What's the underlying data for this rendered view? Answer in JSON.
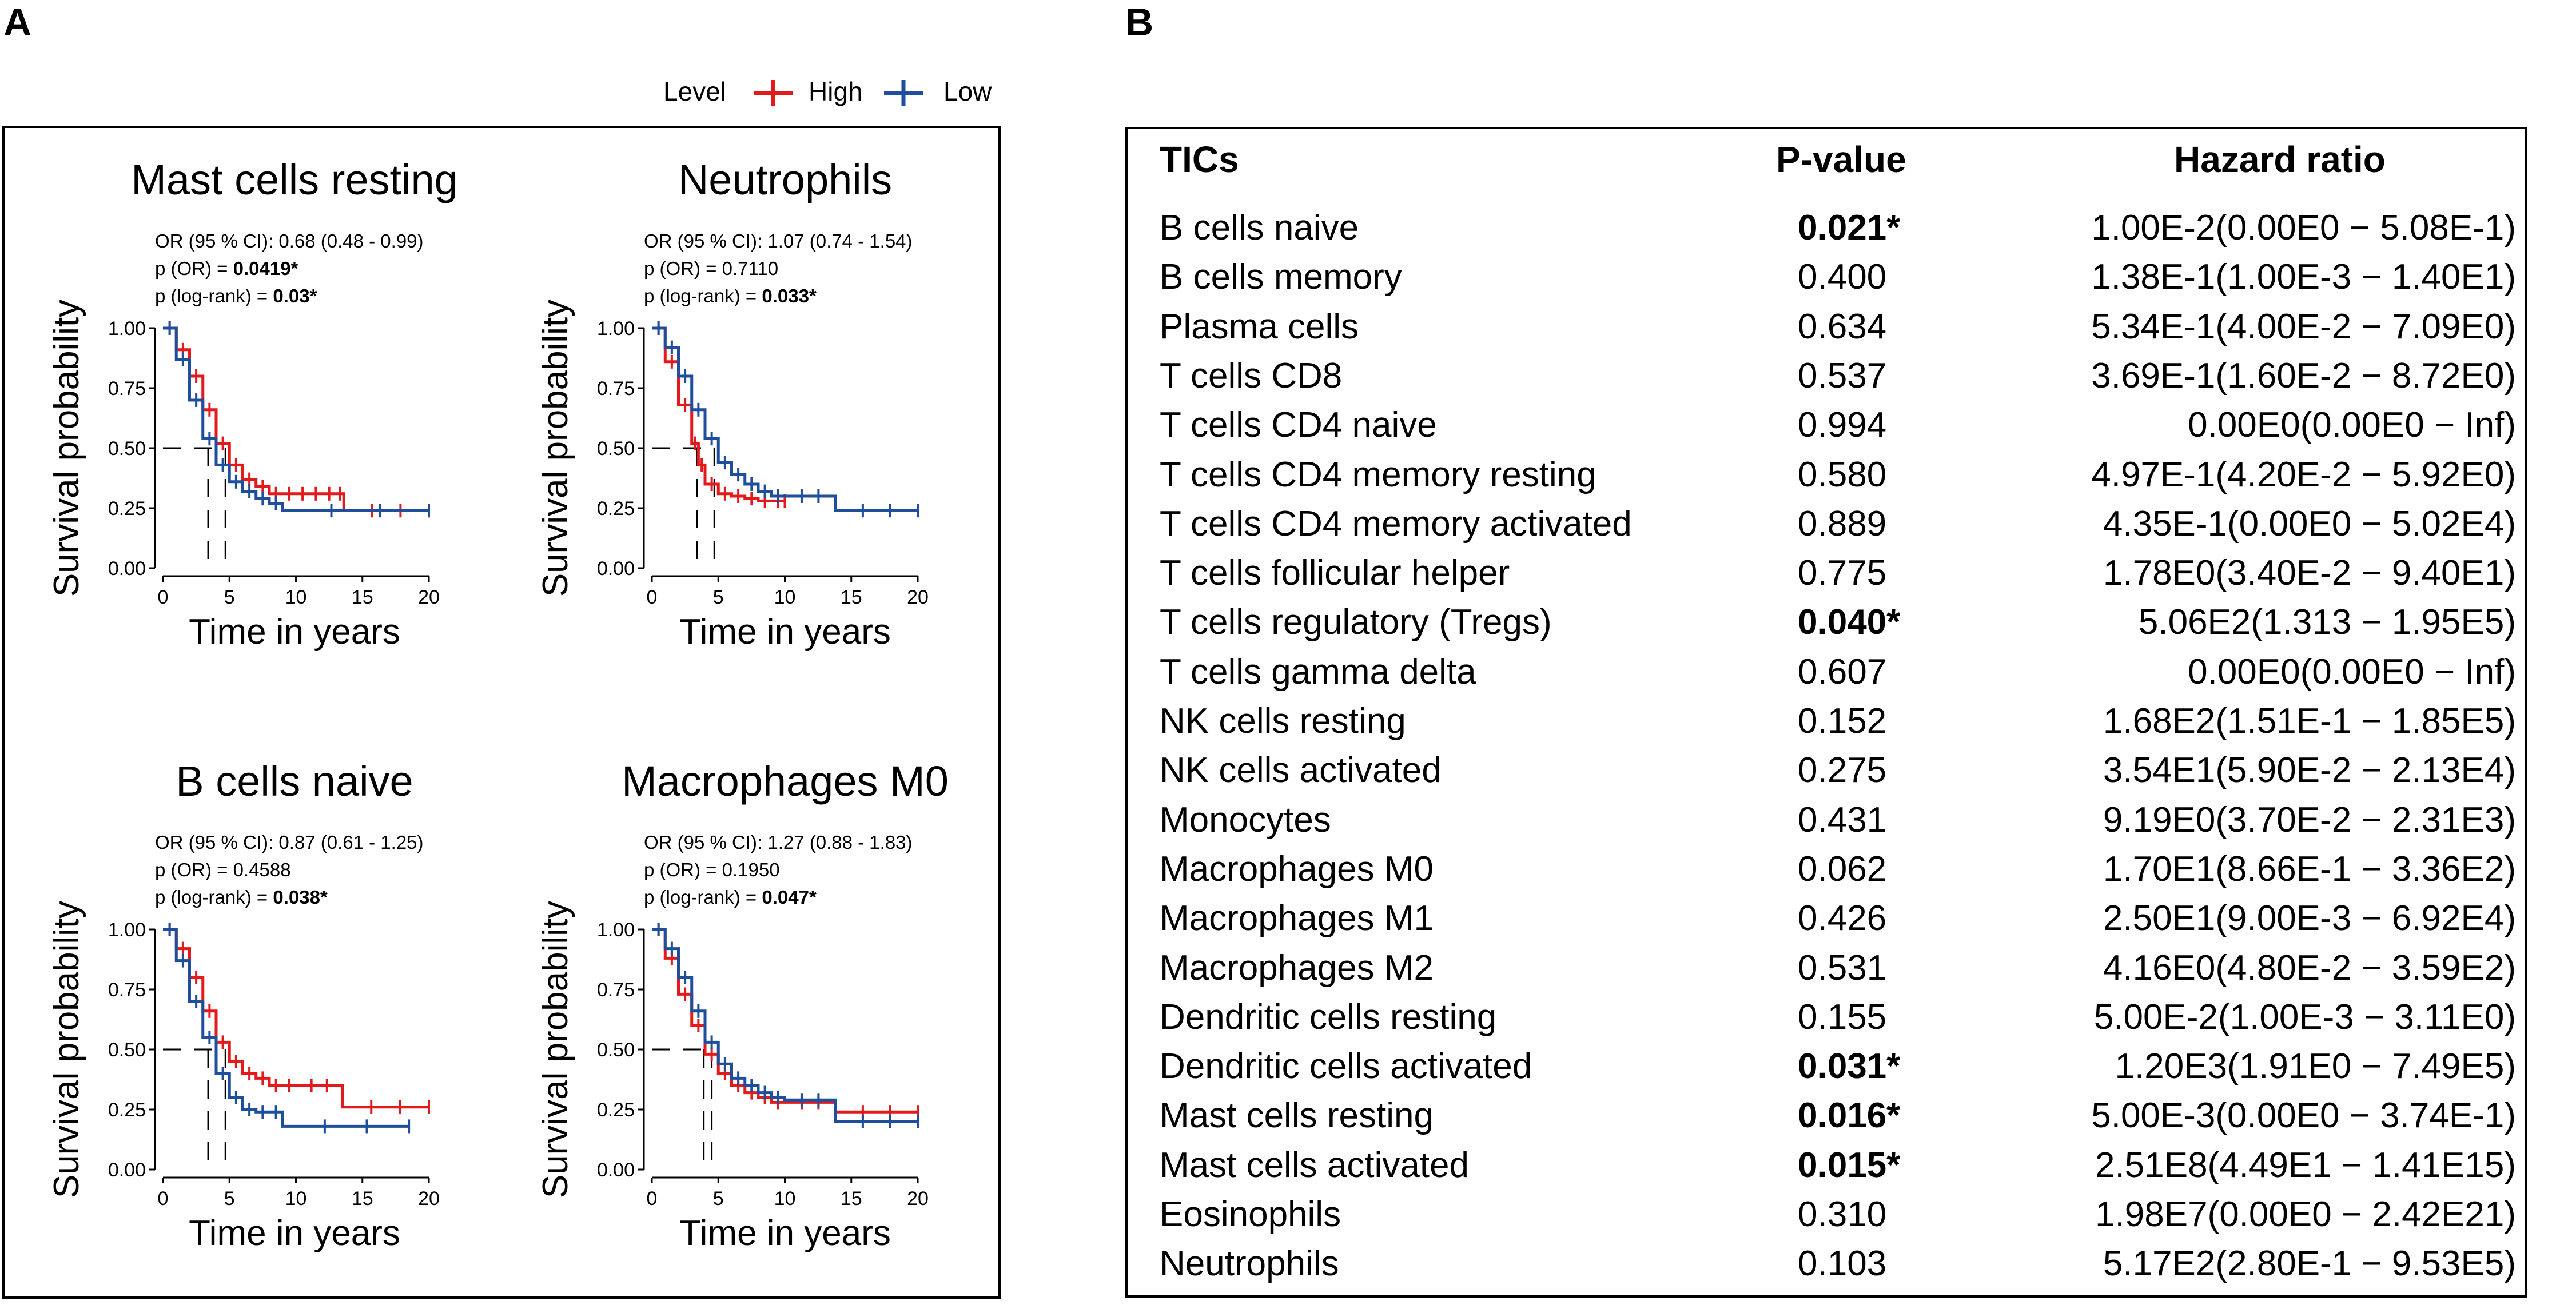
{
  "panel_labels": {
    "a": "A",
    "b": "B"
  },
  "colors": {
    "high": "#e31a1c",
    "low": "#1f4e9c"
  },
  "legend": {
    "title": "Level",
    "high": "High",
    "low": "Low"
  },
  "chart_data": [
    {
      "type": "line",
      "title": "Mast cells resting",
      "annot": {
        "or_label": "OR (95 % CI): 0.68 (0.48 - 0.99)",
        "p_or_label": "p (OR) = ",
        "p_or": "0.0419*",
        "p_lr_label": "p (log-rank) = ",
        "p_lr": "0.03*"
      },
      "xlabel": "Time in years",
      "ylabel": "Survival probability",
      "xlim": [
        0,
        20
      ],
      "ylim": [
        0,
        1
      ],
      "xticks": [
        "0",
        "5",
        "10",
        "15",
        "20"
      ],
      "yticks": [
        "0.00",
        "0.25",
        "0.50",
        "0.75",
        "1.00"
      ],
      "medians": [
        3.4,
        4.7
      ],
      "series": [
        {
          "name": "High",
          "x": [
            0,
            1,
            2,
            3,
            4,
            5,
            6,
            7,
            8,
            9,
            10,
            11,
            12,
            13,
            13.6,
            20
          ],
          "y": [
            1.0,
            0.91,
            0.8,
            0.66,
            0.52,
            0.43,
            0.37,
            0.34,
            0.31,
            0.31,
            0.31,
            0.31,
            0.31,
            0.31,
            0.24,
            0.24
          ]
        },
        {
          "name": "Low",
          "x": [
            0,
            1,
            2,
            3,
            4,
            5,
            6,
            7,
            8,
            9,
            20
          ],
          "y": [
            1.0,
            0.87,
            0.7,
            0.54,
            0.43,
            0.36,
            0.32,
            0.29,
            0.27,
            0.24,
            0.24
          ]
        }
      ]
    },
    {
      "type": "line",
      "title": "Neutrophils",
      "annot": {
        "or_label": "OR (95 % CI): 1.07 (0.74 - 1.54)",
        "p_or_label": "p (OR) = ",
        "p_or": "0.7110",
        "p_lr_label": "p (log-rank) = ",
        "p_lr": "0.033*"
      },
      "xlabel": "Time in years",
      "ylabel": "Survival probability",
      "xlim": [
        0,
        20
      ],
      "ylim": [
        0,
        1
      ],
      "xticks": [
        "0",
        "5",
        "10",
        "15",
        "20"
      ],
      "yticks": [
        "0.00",
        "0.25",
        "0.50",
        "0.75",
        "1.00"
      ],
      "medians": [
        3.4,
        4.7
      ],
      "series": [
        {
          "name": "High",
          "x": [
            0,
            1,
            2,
            3,
            3.5,
            4,
            5,
            6,
            7,
            8,
            9,
            10
          ],
          "y": [
            1.0,
            0.86,
            0.68,
            0.52,
            0.43,
            0.35,
            0.31,
            0.3,
            0.29,
            0.28,
            0.28,
            0.28
          ]
        },
        {
          "name": "Low",
          "x": [
            0,
            1,
            2,
            3,
            4,
            5,
            6,
            7,
            8,
            9,
            10,
            13.8,
            20
          ],
          "y": [
            1.0,
            0.92,
            0.8,
            0.66,
            0.54,
            0.44,
            0.39,
            0.35,
            0.32,
            0.3,
            0.3,
            0.24,
            0.24
          ]
        }
      ]
    },
    {
      "type": "line",
      "title": "B cells naive",
      "annot": {
        "or_label": "OR (95 % CI): 0.87 (0.61 - 1.25)",
        "p_or_label": "p (OR) = ",
        "p_or": "0.4588",
        "p_lr_label": "p (log-rank) = ",
        "p_lr": "0.038*"
      },
      "xlabel": "Time in years",
      "ylabel": "Survival probability",
      "xlim": [
        0,
        20
      ],
      "ylim": [
        0,
        1
      ],
      "xticks": [
        "0",
        "5",
        "10",
        "15",
        "20"
      ],
      "yticks": [
        "0.00",
        "0.25",
        "0.50",
        "0.75",
        "1.00"
      ],
      "medians": [
        3.4,
        4.7
      ],
      "series": [
        {
          "name": "High",
          "x": [
            0,
            1,
            2,
            3,
            4,
            5,
            6,
            7,
            8,
            9,
            10,
            13.5,
            20
          ],
          "y": [
            1.0,
            0.92,
            0.8,
            0.66,
            0.53,
            0.45,
            0.4,
            0.38,
            0.35,
            0.35,
            0.35,
            0.26,
            0.26
          ]
        },
        {
          "name": "Low",
          "x": [
            0,
            1,
            2,
            3,
            4,
            5,
            6,
            7,
            8,
            9,
            18.5
          ],
          "y": [
            1.0,
            0.87,
            0.7,
            0.55,
            0.4,
            0.3,
            0.25,
            0.24,
            0.24,
            0.18,
            0.18
          ]
        }
      ]
    },
    {
      "type": "line",
      "title": "Macrophages M0",
      "annot": {
        "or_label": "OR (95 % CI): 1.27 (0.88 - 1.83)",
        "p_or_label": "p (OR) = ",
        "p_or": "0.1950",
        "p_lr_label": "p (log-rank) = ",
        "p_lr": "0.047*"
      },
      "xlabel": "Time in years",
      "ylabel": "Survival probability",
      "xlim": [
        0,
        20
      ],
      "ylim": [
        0,
        1
      ],
      "xticks": [
        "0",
        "5",
        "10",
        "15",
        "20"
      ],
      "yticks": [
        "0.00",
        "0.25",
        "0.50",
        "0.75",
        "1.00"
      ],
      "medians": [
        3.9,
        4.5
      ],
      "series": [
        {
          "name": "High",
          "x": [
            0,
            1,
            2,
            3,
            4,
            5,
            6,
            7,
            8,
            9,
            10,
            13.8,
            20
          ],
          "y": [
            1.0,
            0.88,
            0.73,
            0.6,
            0.48,
            0.4,
            0.35,
            0.32,
            0.3,
            0.28,
            0.28,
            0.24,
            0.24
          ]
        },
        {
          "name": "Low",
          "x": [
            0,
            1,
            2,
            3,
            4,
            5,
            6,
            7,
            8,
            9,
            10,
            13.8,
            20
          ],
          "y": [
            1.0,
            0.92,
            0.8,
            0.66,
            0.53,
            0.44,
            0.38,
            0.35,
            0.32,
            0.3,
            0.29,
            0.2,
            0.2
          ]
        }
      ]
    },
    {
      "type": "table",
      "columns": [
        "TICs",
        "P-value",
        "Hazard ratio"
      ],
      "rows": [
        {
          "name": "B cells naive",
          "p": "0.021*",
          "sig": true,
          "hr": "1.00E-2(0.00E0 − 5.08E-1)"
        },
        {
          "name": "B cells memory",
          "p": "0.400",
          "sig": false,
          "hr": "1.38E-1(1.00E-3 − 1.40E1)"
        },
        {
          "name": "Plasma cells",
          "p": "0.634",
          "sig": false,
          "hr": "5.34E-1(4.00E-2 − 7.09E0)"
        },
        {
          "name": "T cells CD8",
          "p": "0.537",
          "sig": false,
          "hr": "3.69E-1(1.60E-2 − 8.72E0)"
        },
        {
          "name": "T cells CD4 naive",
          "p": "0.994",
          "sig": false,
          "hr": "0.00E0(0.00E0 − Inf)"
        },
        {
          "name": "T cells CD4 memory resting",
          "p": "0.580",
          "sig": false,
          "hr": "4.97E-1(4.20E-2 − 5.92E0)"
        },
        {
          "name": "T cells CD4 memory activated",
          "p": "0.889",
          "sig": false,
          "hr": "4.35E-1(0.00E0 − 5.02E4)"
        },
        {
          "name": "T cells follicular helper",
          "p": "0.775",
          "sig": false,
          "hr": "1.78E0(3.40E-2 − 9.40E1)"
        },
        {
          "name": "T cells regulatory (Tregs)",
          "p": "0.040*",
          "sig": true,
          "hr": "5.06E2(1.313 − 1.95E5)"
        },
        {
          "name": "T cells gamma delta",
          "p": "0.607",
          "sig": false,
          "hr": "0.00E0(0.00E0 − Inf)"
        },
        {
          "name": "NK cells resting",
          "p": "0.152",
          "sig": false,
          "hr": "1.68E2(1.51E-1 − 1.85E5)"
        },
        {
          "name": "NK cells activated",
          "p": "0.275",
          "sig": false,
          "hr": "3.54E1(5.90E-2 − 2.13E4)"
        },
        {
          "name": "Monocytes",
          "p": "0.431",
          "sig": false,
          "hr": "9.19E0(3.70E-2 − 2.31E3)"
        },
        {
          "name": "Macrophages M0",
          "p": "0.062",
          "sig": false,
          "hr": "1.70E1(8.66E-1 − 3.36E2)"
        },
        {
          "name": "Macrophages M1",
          "p": "0.426",
          "sig": false,
          "hr": "2.50E1(9.00E-3 − 6.92E4)"
        },
        {
          "name": "Macrophages M2",
          "p": "0.531",
          "sig": false,
          "hr": "4.16E0(4.80E-2 − 3.59E2)"
        },
        {
          "name": "Dendritic cells resting",
          "p": "0.155",
          "sig": false,
          "hr": "5.00E-2(1.00E-3 − 3.11E0)"
        },
        {
          "name": "Dendritic cells activated",
          "p": "0.031*",
          "sig": true,
          "hr": "1.20E3(1.91E0 − 7.49E5)"
        },
        {
          "name": "Mast cells resting",
          "p": "0.016*",
          "sig": true,
          "hr": "5.00E-3(0.00E0 − 3.74E-1)"
        },
        {
          "name": "Mast cells activated",
          "p": "0.015*",
          "sig": true,
          "hr": "2.51E8(4.49E1 − 1.41E15)"
        },
        {
          "name": "Eosinophils",
          "p": "0.310",
          "sig": false,
          "hr": "1.98E7(0.00E0 − 2.42E21)"
        },
        {
          "name": "Neutrophils",
          "p": "0.103",
          "sig": false,
          "hr": "5.17E2(2.80E-1 − 9.53E5)"
        }
      ]
    }
  ]
}
